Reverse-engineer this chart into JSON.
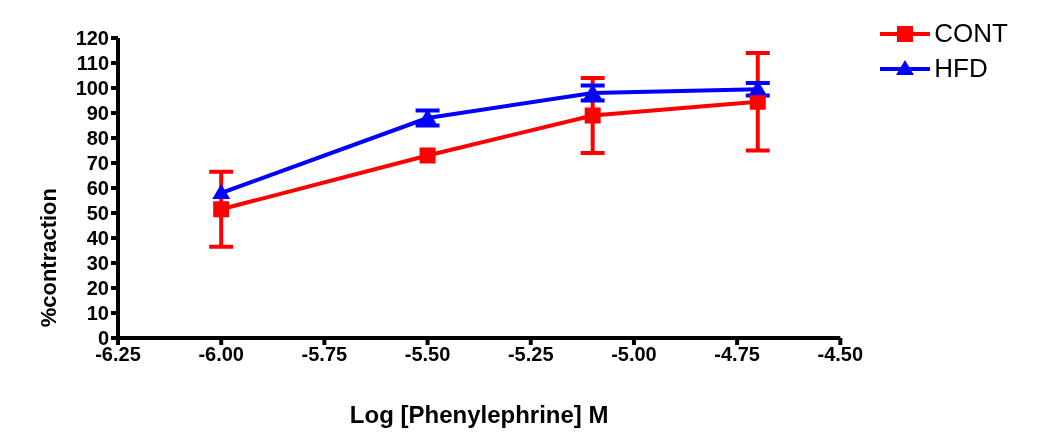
{
  "chart_data": {
    "type": "line",
    "xlabel": "Log [Phenylephrine] M",
    "ylabel": "%contraction",
    "x": [
      -6.0,
      -5.5,
      -5.1,
      -4.7
    ],
    "series": [
      {
        "name": "CONT",
        "color": "#ff0000",
        "marker": "square",
        "values": [
          51.5,
          73,
          89,
          94.5
        ],
        "errors": [
          15,
          null,
          15,
          19.5
        ]
      },
      {
        "name": "HFD",
        "color": "#0000ff",
        "marker": "triangle",
        "values": [
          58,
          88,
          98,
          99.5
        ],
        "errors": [
          null,
          3,
          3,
          2.5
        ]
      }
    ],
    "xlim": [
      -6.25,
      -4.5
    ],
    "xticks": [
      {
        "value": -6.25,
        "label": "-6.25"
      },
      {
        "value": -6.0,
        "label": "-6.00"
      },
      {
        "value": -5.75,
        "label": "-5.75"
      },
      {
        "value": -5.5,
        "label": "-5.50"
      },
      {
        "value": -5.25,
        "label": "-5.25"
      },
      {
        "value": -5.0,
        "label": "-5.00"
      },
      {
        "value": -4.75,
        "label": "-4.75"
      },
      {
        "value": -4.5,
        "label": "-4.50"
      }
    ],
    "ylim": [
      0,
      120
    ],
    "yticks": [
      0,
      10,
      20,
      30,
      40,
      50,
      60,
      70,
      80,
      90,
      100,
      110,
      120
    ],
    "grid": false,
    "legend": "top right",
    "line_style": "solid"
  }
}
